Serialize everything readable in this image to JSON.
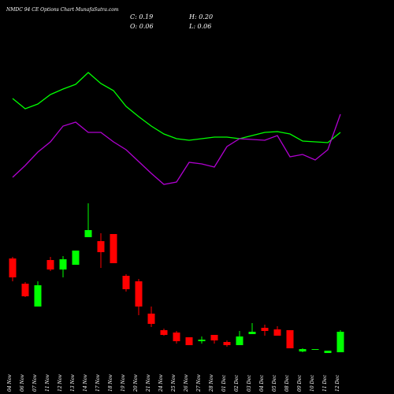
{
  "chart_data": {
    "type": "candlestick",
    "title": "NMDC 94 CE Options Chart MunafaSutra.com",
    "ohlc_labels": {
      "close": "C: 0.19",
      "high": "H: 0.20",
      "open": "O: 0.06",
      "low": "L: 0.06"
    },
    "categories": [
      "04 Nov",
      "06 Nov",
      "07 Nov",
      "11 Nov",
      "12 Nov",
      "13 Nov",
      "14 Nov",
      "17 Nov",
      "18 Nov",
      "19 Nov",
      "20 Nov",
      "21 Nov",
      "24 Nov",
      "25 Nov",
      "26 Nov",
      "27 Nov",
      "28 Nov",
      "01 Dec",
      "02 Dec",
      "03 Dec",
      "04 Dec",
      "05 Dec",
      "08 Dec",
      "09 Dec",
      "10 Dec",
      "11 Dec",
      "12 Dec"
    ],
    "open": [
      0.655,
      0.495,
      0.35,
      0.645,
      0.585,
      0.615,
      0.79,
      0.765,
      0.81,
      0.545,
      0.51,
      0.305,
      0.2,
      0.185,
      0.155,
      0.13,
      0.17,
      0.125,
      0.105,
      0.175,
      0.215,
      0.205,
      0.2,
      0.065,
      0.075,
      0.055,
      0.06
    ],
    "high": [
      0.665,
      0.505,
      0.51,
      0.665,
      0.67,
      0.705,
      1.005,
      0.815,
      0.81,
      0.555,
      0.525,
      0.35,
      0.21,
      0.195,
      0.155,
      0.16,
      0.17,
      0.135,
      0.195,
      0.245,
      0.235,
      0.225,
      0.2,
      0.085,
      0.08,
      0.07,
      0.2
    ],
    "low": [
      0.51,
      0.41,
      0.35,
      0.575,
      0.535,
      0.615,
      0.79,
      0.595,
      0.625,
      0.445,
      0.295,
      0.22,
      0.165,
      0.115,
      0.105,
      0.115,
      0.115,
      0.095,
      0.105,
      0.175,
      0.165,
      0.165,
      0.085,
      0.06,
      0.075,
      0.055,
      0.06
    ],
    "close": [
      0.535,
      0.415,
      0.485,
      0.585,
      0.65,
      0.705,
      0.835,
      0.695,
      0.625,
      0.46,
      0.35,
      0.24,
      0.17,
      0.13,
      0.105,
      0.14,
      0.135,
      0.105,
      0.16,
      0.19,
      0.195,
      0.165,
      0.085,
      0.08,
      0.08,
      0.07,
      0.19
    ],
    "up_color": "#00ff00",
    "down_color": "#ff0000",
    "ylim": [
      -0.155,
      2.295
    ],
    "series": [
      {
        "color": "#00ff00",
        "axis": "y2",
        "values": [
          135,
          122,
          128,
          140,
          147,
          153,
          168,
          154,
          145,
          125,
          112,
          100,
          90,
          84,
          82,
          84,
          86,
          86,
          84,
          88,
          92,
          93,
          90,
          81,
          80,
          79,
          92
        ]
      },
      {
        "color": "#b000d0",
        "axis": "y2",
        "values": [
          35,
          50,
          67,
          80,
          100,
          105,
          92,
          92,
          80,
          70,
          55,
          40,
          26,
          29,
          54,
          52,
          48,
          74,
          84,
          83,
          82,
          88,
          61,
          64,
          57,
          70,
          115
        ]
      }
    ],
    "y2lim": [
      0,
      260
    ]
  }
}
